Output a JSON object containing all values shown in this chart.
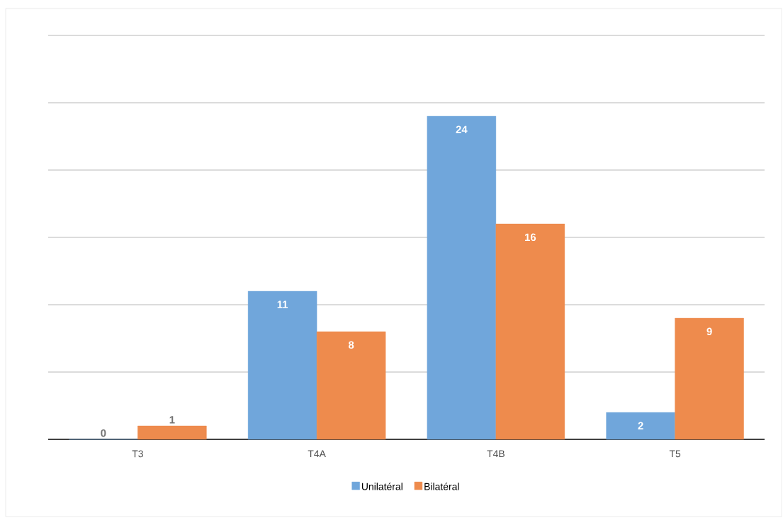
{
  "chart_data": {
    "type": "bar",
    "categories": [
      "T3",
      "T4A",
      "T4B",
      "T5"
    ],
    "series": [
      {
        "name": "Unilatéral",
        "color": "#70a6db",
        "values": [
          0,
          11,
          24,
          2
        ]
      },
      {
        "name": "Bilatéral",
        "color": "#ee8b4d",
        "values": [
          1,
          8,
          16,
          9
        ]
      }
    ],
    "tick_labels": "x",
    "grid": "y",
    "legend": "bottom",
    "data_labels": true
  }
}
